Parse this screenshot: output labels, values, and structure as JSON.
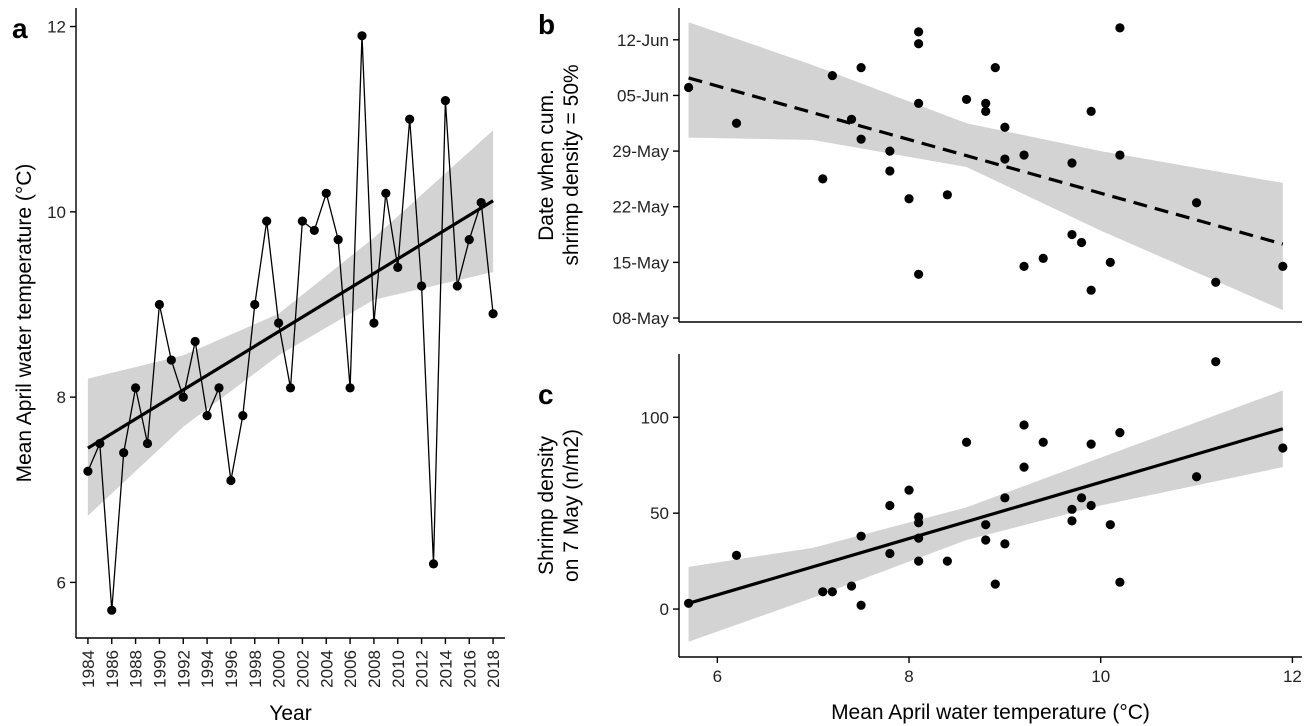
{
  "chart_data": [
    {
      "panel_label": "a",
      "type": "line",
      "xlabel": "Year",
      "ylabel": "Mean April water temperature (°C)",
      "x_tick_labels": [
        "1984",
        "1986",
        "1988",
        "1990",
        "1992",
        "1994",
        "1996",
        "1998",
        "2000",
        "2002",
        "2004",
        "2006",
        "2008",
        "2010",
        "2012",
        "2014",
        "2016",
        "2018"
      ],
      "y_tick_labels": [
        "6",
        "8",
        "10",
        "12"
      ],
      "xlim": [
        1983,
        2019
      ],
      "ylim": [
        5.4,
        12.2
      ],
      "grid": false,
      "series": [
        {
          "x": [
            1984,
            1985,
            1986,
            1987,
            1988,
            1989,
            1990,
            1991,
            1992,
            1993,
            1994,
            1995,
            1996,
            1997,
            1998,
            1999,
            2000,
            2001,
            2002,
            2003,
            2004,
            2005,
            2006,
            2007,
            2008,
            2009,
            2010,
            2011,
            2012,
            2013,
            2014,
            2015,
            2016,
            2017,
            2018
          ],
          "values": [
            7.2,
            7.5,
            5.7,
            7.4,
            8.1,
            7.5,
            9.0,
            8.4,
            8.0,
            8.6,
            7.8,
            8.1,
            7.1,
            7.8,
            9.0,
            9.9,
            8.8,
            8.1,
            9.9,
            9.8,
            10.2,
            9.7,
            8.1,
            11.9,
            8.8,
            10.2,
            9.4,
            11.0,
            9.2,
            6.2,
            11.2,
            9.2,
            9.7,
            10.1,
            8.9
          ]
        }
      ],
      "trend": {
        "style": "solid",
        "start": [
          1984,
          7.45
        ],
        "end": [
          2018,
          10.12
        ]
      },
      "confidence_band": [
        {
          "x": 1984,
          "lower": 6.72,
          "upper": 8.2
        },
        {
          "x": 1992,
          "lower": 7.68,
          "upper": 8.45
        },
        {
          "x": 2000,
          "lower": 8.45,
          "upper": 8.9
        },
        {
          "x": 2008,
          "lower": 9.05,
          "upper": 9.72
        },
        {
          "x": 2018,
          "lower": 9.35,
          "upper": 10.88
        }
      ]
    },
    {
      "panel_label": "b",
      "type": "scatter",
      "xlabel": "",
      "ylabel_lines": [
        "Date when cum.",
        "shrimp density = 50%"
      ],
      "y_tick_labels": [
        "08-May",
        "15-May",
        "22-May",
        "29-May",
        "05-Jun",
        "12-Jun"
      ],
      "y_tick_values": [
        0,
        7,
        14,
        21,
        28,
        35
      ],
      "y_unit": "days since 08-May",
      "xlim": [
        5.6,
        12.1
      ],
      "ylim": [
        -0.5,
        39
      ],
      "grid": false,
      "points": [
        [
          5.7,
          29
        ],
        [
          6.2,
          24.5
        ],
        [
          7.1,
          17.5
        ],
        [
          7.2,
          30.5
        ],
        [
          7.4,
          25
        ],
        [
          7.5,
          31.5
        ],
        [
          7.5,
          22.5
        ],
        [
          7.8,
          21
        ],
        [
          7.8,
          18.5
        ],
        [
          8.0,
          15
        ],
        [
          8.1,
          36
        ],
        [
          8.1,
          34.5
        ],
        [
          8.1,
          27
        ],
        [
          8.1,
          5.5
        ],
        [
          8.4,
          15.5
        ],
        [
          8.6,
          27.5
        ],
        [
          8.8,
          27
        ],
        [
          8.8,
          26
        ],
        [
          8.9,
          31.5
        ],
        [
          9.0,
          24
        ],
        [
          9.0,
          20
        ],
        [
          9.2,
          20.5
        ],
        [
          9.2,
          6.5
        ],
        [
          9.4,
          7.5
        ],
        [
          9.7,
          19.5
        ],
        [
          9.7,
          10.5
        ],
        [
          9.8,
          9.5
        ],
        [
          9.9,
          26
        ],
        [
          9.9,
          3.5
        ],
        [
          10.1,
          7
        ],
        [
          10.2,
          36.5
        ],
        [
          10.2,
          20.5
        ],
        [
          11.0,
          14.5
        ],
        [
          11.2,
          4.5
        ],
        [
          11.9,
          6.5
        ]
      ],
      "trend": {
        "style": "dashed",
        "start": [
          5.7,
          30.2
        ],
        "end": [
          11.9,
          9.3
        ]
      },
      "confidence_band": [
        {
          "x": 5.7,
          "lower": 22.7,
          "upper": 37.2
        },
        {
          "x": 7.0,
          "lower": 22.4,
          "upper": 31.8
        },
        {
          "x": 8.6,
          "lower": 19.0,
          "upper": 24.5
        },
        {
          "x": 10.0,
          "lower": 11.0,
          "upper": 21.0
        },
        {
          "x": 11.9,
          "lower": 1.0,
          "upper": 17.0
        }
      ]
    },
    {
      "panel_label": "c",
      "type": "scatter",
      "xlabel": "Mean April water temperature (°C)",
      "ylabel_lines": [
        "Shrimp density",
        "on 7 May (n/m2)"
      ],
      "x_tick_labels": [
        "6",
        "8",
        "10",
        "12"
      ],
      "y_tick_labels": [
        "0",
        "50",
        "100"
      ],
      "xlim": [
        5.6,
        12.1
      ],
      "ylim": [
        -25,
        133
      ],
      "grid": false,
      "points": [
        [
          5.7,
          3
        ],
        [
          6.2,
          28
        ],
        [
          7.1,
          9
        ],
        [
          7.2,
          9
        ],
        [
          7.4,
          12
        ],
        [
          7.5,
          2
        ],
        [
          7.5,
          38
        ],
        [
          7.8,
          29
        ],
        [
          7.8,
          54
        ],
        [
          8.0,
          62
        ],
        [
          8.1,
          48
        ],
        [
          8.1,
          45
        ],
        [
          8.1,
          37
        ],
        [
          8.1,
          25
        ],
        [
          8.4,
          25
        ],
        [
          8.6,
          87
        ],
        [
          8.8,
          44
        ],
        [
          8.8,
          36
        ],
        [
          8.9,
          13
        ],
        [
          9.0,
          58
        ],
        [
          9.0,
          34
        ],
        [
          9.2,
          96
        ],
        [
          9.2,
          74
        ],
        [
          9.4,
          87
        ],
        [
          9.7,
          52
        ],
        [
          9.7,
          46
        ],
        [
          9.8,
          58
        ],
        [
          9.9,
          86
        ],
        [
          9.9,
          54
        ],
        [
          10.1,
          44
        ],
        [
          10.2,
          92
        ],
        [
          10.2,
          14
        ],
        [
          11.0,
          69
        ],
        [
          11.2,
          129
        ],
        [
          11.9,
          84
        ]
      ],
      "trend": {
        "style": "solid",
        "start": [
          5.7,
          3
        ],
        "end": [
          11.9,
          94
        ]
      },
      "confidence_band": [
        {
          "x": 5.7,
          "lower": -17,
          "upper": 22
        },
        {
          "x": 7.0,
          "lower": 6,
          "upper": 32
        },
        {
          "x": 8.6,
          "lower": 36,
          "upper": 53
        },
        {
          "x": 10.0,
          "lower": 54,
          "upper": 79
        },
        {
          "x": 11.9,
          "lower": 74,
          "upper": 114
        }
      ]
    }
  ]
}
